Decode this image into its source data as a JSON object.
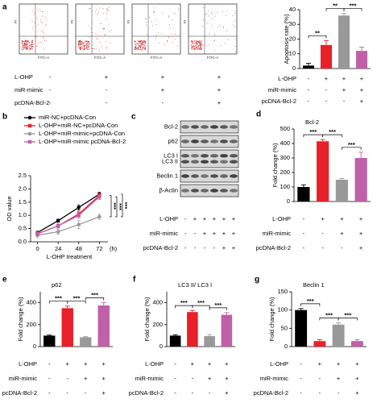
{
  "chart_data": [
    {
      "type": "flow",
      "panel_label": "a",
      "plots": [
        {
          "x_label": "FITC-A",
          "y_label": "PI"
        },
        {
          "x_label": "FITC-A",
          "y_label": "PI"
        },
        {
          "x_label": "FITC-A",
          "y_label": "PI"
        },
        {
          "x_label": "FITC-A",
          "y_label": "PI"
        }
      ],
      "treatments": [
        {
          "name": "L-OHP",
          "signs": [
            "-",
            "+",
            "+",
            "+"
          ]
        },
        {
          "name": "miR-mimic",
          "signs": [
            "-",
            "-",
            "+",
            "+"
          ]
        },
        {
          "name": "pcDNA-Bcl-2",
          "signs": [
            "-",
            "-",
            "-",
            "+"
          ]
        }
      ]
    },
    {
      "type": "bar",
      "y_label": "Apoptosis rate (%)",
      "categories": [
        null,
        null,
        null,
        null
      ],
      "values": [
        2,
        16,
        36,
        12
      ],
      "errors": [
        1.5,
        3,
        1.5,
        2.5
      ],
      "colors": [
        "#000000",
        "#e8202a",
        "#999999",
        "#c060a8"
      ],
      "ylim": [
        0,
        40
      ],
      "yticks": [
        0,
        10,
        20,
        30,
        40
      ],
      "annotations": [
        {
          "text": "**",
          "pair": [
            0,
            1
          ]
        },
        {
          "text": "**",
          "pair": [
            1,
            2
          ]
        },
        {
          "text": "***",
          "pair": [
            2,
            3
          ]
        }
      ],
      "treatments": [
        {
          "name": "L-OHP",
          "signs": [
            "-",
            "+",
            "+",
            "+"
          ]
        },
        {
          "name": "miR-mimic",
          "signs": [
            "-",
            "-",
            "+",
            "+"
          ]
        },
        {
          "name": "pcDNA-Bcl-2",
          "signs": [
            "-",
            "-",
            "-",
            "+"
          ]
        }
      ]
    },
    {
      "type": "line",
      "panel_label": "b",
      "y_label": "OD value",
      "x_label": "L-OHP  treatment",
      "x_unit": "(h)",
      "x": [
        0,
        24,
        48,
        72
      ],
      "xlim": [
        -8,
        82
      ],
      "xticks": [
        0,
        24,
        48,
        72
      ],
      "ylim": [
        0,
        2.5
      ],
      "yticks": [
        {
          "value": 0,
          "label": "0.0"
        },
        0.5,
        {
          "value": 1,
          "label": "1.0"
        },
        1.5,
        {
          "value": 2,
          "label": "2.0"
        },
        2.5
      ],
      "series": [
        {
          "name": "miR-NC+pcDNA-Con",
          "color": "#000000",
          "marker": "circle",
          "values": [
            0.35,
            0.8,
            1.3,
            1.8
          ],
          "errors": [
            0.05,
            0.06,
            0.1,
            0.08
          ]
        },
        {
          "name": "L-OHP+miR-NC+pcDNA-Con",
          "color": "#e8202a",
          "marker": "square",
          "values": [
            0.3,
            0.6,
            1.05,
            1.75
          ],
          "errors": [
            0.05,
            0.05,
            0.1,
            0.1
          ]
        },
        {
          "name": "L-OHP+miR-mimic+pcDNA-Con",
          "color": "#999999",
          "marker": "circle",
          "values": [
            0.25,
            0.38,
            0.65,
            0.95
          ],
          "errors": [
            0.1,
            0.1,
            0.15,
            0.1
          ]
        },
        {
          "name": "L-OHP+miR-mimic pcDNA-Bcl-2",
          "color": "#c060a8",
          "marker": "square",
          "values": [
            0.3,
            0.6,
            1.0,
            1.7
          ],
          "errors": [
            0.08,
            0.08,
            0.1,
            0.1
          ]
        }
      ],
      "annotations": [
        {
          "text": "***",
          "pair": [
            1,
            2
          ]
        },
        {
          "text": "***",
          "pair": [
            3,
            2
          ]
        },
        {
          "text": "***",
          "pair": [
            0,
            2
          ]
        }
      ]
    },
    {
      "type": "blot",
      "panel_label": "c",
      "bands": [
        "Bcl-2",
        "p62",
        "LC3 I",
        "LC3 II",
        "Beclin 1",
        "β-Actin"
      ],
      "treatments": [
        {
          "name": "L-OHP",
          "signs": [
            "-",
            "+",
            "+",
            "+",
            "+",
            "+"
          ]
        },
        {
          "name": "miR-mimic",
          "signs": [
            "-",
            "-",
            "+",
            "+",
            "+",
            "+"
          ]
        },
        {
          "name": "pcDNA-Bcl-2",
          "signs": [
            "-",
            "-",
            "-",
            "-",
            "+",
            "+"
          ]
        }
      ]
    },
    {
      "type": "bar",
      "panel_label": "d",
      "title": "Bcl-2",
      "y_label": "Fold change (%)",
      "categories": [
        null,
        null,
        null,
        null
      ],
      "values": [
        100,
        415,
        150,
        300
      ],
      "errors": [
        15,
        12,
        8,
        40
      ],
      "colors": [
        "#000000",
        "#e8202a",
        "#999999",
        "#c060a8"
      ],
      "ylim": [
        0,
        500
      ],
      "yticks": [
        0,
        100,
        200,
        300,
        400,
        500
      ],
      "annotations": [
        {
          "text": "***",
          "pair": [
            0,
            1
          ]
        },
        {
          "text": "***",
          "pair": [
            1,
            2
          ]
        },
        {
          "text": "***",
          "pair": [
            2,
            3
          ]
        }
      ],
      "treatments": [
        {
          "name": "L-OHP",
          "signs": [
            "-",
            "+",
            "+",
            "+"
          ]
        },
        {
          "name": "miR-mimic",
          "signs": [
            "-",
            "-",
            "+",
            "+"
          ]
        },
        {
          "name": "pcDNA-Bcl-2",
          "signs": [
            "-",
            "-",
            "-",
            "+"
          ]
        }
      ]
    },
    {
      "type": "bar",
      "panel_label": "e",
      "title": "p62",
      "y_label": "Fold change (%)",
      "categories": [
        null,
        null,
        null,
        null
      ],
      "values": [
        100,
        350,
        85,
        375
      ],
      "errors": [
        5,
        20,
        5,
        25
      ],
      "colors": [
        "#000000",
        "#e8202a",
        "#999999",
        "#c060a8"
      ],
      "ylim": [
        0,
        500
      ],
      "yticks": [
        0,
        200,
        400
      ],
      "annotations": [
        {
          "text": "***",
          "pair": [
            0,
            1
          ]
        },
        {
          "text": "***",
          "pair": [
            1,
            2
          ]
        },
        {
          "text": "***",
          "pair": [
            2,
            3
          ]
        }
      ],
      "treatments": [
        {
          "name": "L-OHP",
          "signs": [
            "-",
            "+",
            "+",
            "+"
          ]
        },
        {
          "name": "miR-mimic",
          "signs": [
            "-",
            "-",
            "+",
            "+"
          ]
        },
        {
          "name": "pcDNA-Bcl-2",
          "signs": [
            "-",
            "-",
            "-",
            "+"
          ]
        }
      ]
    },
    {
      "type": "bar",
      "panel_label": "f",
      "title": "LC3 II/ LC3 I",
      "y_label": "Fold change (%)",
      "categories": [
        null,
        null,
        null,
        null
      ],
      "values": [
        100,
        315,
        95,
        290
      ],
      "errors": [
        8,
        15,
        15,
        20
      ],
      "colors": [
        "#000000",
        "#e8202a",
        "#999999",
        "#c060a8"
      ],
      "ylim": [
        0,
        500
      ],
      "yticks": [
        0,
        200,
        400
      ],
      "annotations": [
        {
          "text": "***",
          "pair": [
            0,
            1
          ]
        },
        {
          "text": "***",
          "pair": [
            1,
            2
          ]
        },
        {
          "text": "***",
          "pair": [
            2,
            3
          ]
        }
      ],
      "treatments": [
        {
          "name": "L-OHP",
          "signs": [
            "-",
            "+",
            "+",
            "+"
          ]
        },
        {
          "name": "miR-mimic",
          "signs": [
            "-",
            "-",
            "+",
            "+"
          ]
        },
        {
          "name": "pcDNA-Bcl-2",
          "signs": [
            "-",
            "-",
            "-",
            "+"
          ]
        }
      ]
    },
    {
      "type": "bar",
      "panel_label": "g",
      "title": "Beclin 1",
      "y_label": "Fold change (%)",
      "categories": [
        null,
        null,
        null,
        null
      ],
      "values": [
        100,
        15,
        60,
        15
      ],
      "errors": [
        4,
        4,
        5,
        4
      ],
      "colors": [
        "#000000",
        "#e8202a",
        "#999999",
        "#c060a8"
      ],
      "ylim": [
        0,
        150
      ],
      "yticks": [
        0,
        50,
        100,
        150
      ],
      "annotations": [
        {
          "text": "***",
          "pair": [
            0,
            1
          ]
        },
        {
          "text": "***",
          "pair": [
            1,
            2
          ]
        },
        {
          "text": "***",
          "pair": [
            2,
            3
          ]
        }
      ],
      "treatments": [
        {
          "name": "L-OHP",
          "signs": [
            "-",
            "+",
            "+",
            "+"
          ]
        },
        {
          "name": "miR-mimic",
          "signs": [
            "-",
            "-",
            "+",
            "+"
          ]
        },
        {
          "name": "pcDNA-Bcl-2",
          "signs": [
            "-",
            "-",
            "-",
            "+"
          ]
        }
      ]
    }
  ]
}
